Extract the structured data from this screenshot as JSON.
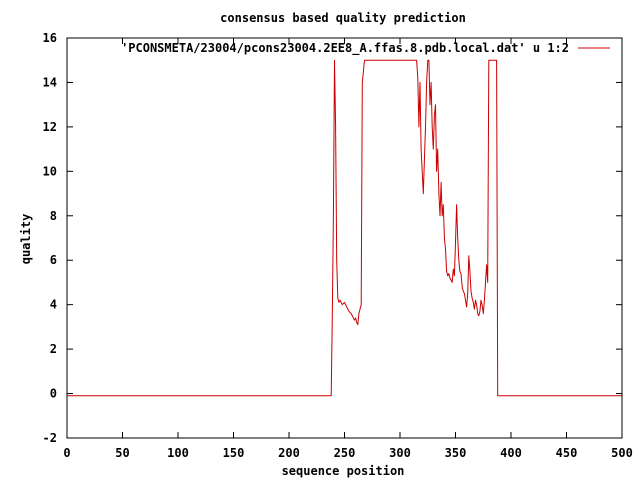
{
  "chart_data": {
    "type": "line",
    "title": "consensus based quality prediction",
    "xlabel": "sequence position",
    "ylabel": "quality",
    "xlim": [
      0,
      500
    ],
    "ylim": [
      -2,
      16
    ],
    "xticks": [
      0,
      50,
      100,
      150,
      200,
      250,
      300,
      350,
      400,
      450,
      500
    ],
    "yticks": [
      -2,
      0,
      2,
      4,
      6,
      8,
      10,
      12,
      14,
      16
    ],
    "grid": false,
    "legend_position": "top-right",
    "colors": {
      "series": "#cc0000",
      "axes": "#000000"
    },
    "series": [
      {
        "name": "'PCONSMETA/23004/pcons23004.2EE8_A.ffas.8.pdb.local.dat' u 1:2",
        "x": [
          0,
          238,
          239,
          240,
          241,
          242,
          243,
          244,
          245,
          246,
          248,
          250,
          252,
          254,
          256,
          258,
          259,
          260,
          261,
          262,
          263,
          264,
          265,
          266,
          268,
          270,
          280,
          290,
          300,
          310,
          315,
          316,
          317,
          318,
          319,
          320,
          321,
          322,
          323,
          324,
          325,
          326,
          327,
          328,
          329,
          330,
          331,
          332,
          333,
          334,
          335,
          336,
          337,
          338,
          339,
          340,
          341,
          342,
          343,
          344,
          345,
          346,
          347,
          348,
          349,
          350,
          351,
          352,
          353,
          354,
          355,
          356,
          357,
          358,
          359,
          360,
          361,
          362,
          363,
          364,
          365,
          366,
          367,
          368,
          369,
          370,
          371,
          372,
          373,
          374,
          375,
          376,
          377,
          378,
          379,
          380,
          381,
          382,
          383,
          384,
          385,
          386,
          387,
          388,
          389,
          500
        ],
        "y": [
          -0.1,
          -0.1,
          3.5,
          8,
          15,
          12,
          6,
          4.3,
          4.1,
          4.2,
          4,
          4.1,
          3.9,
          3.7,
          3.6,
          3.4,
          3.3,
          3.4,
          3.2,
          3.1,
          3.6,
          3.8,
          4,
          14,
          15,
          15,
          15,
          15,
          15,
          15,
          15,
          14.2,
          12,
          14,
          11,
          10,
          9,
          10.5,
          12,
          14,
          15,
          15,
          13,
          14,
          12,
          11,
          12.5,
          13,
          10,
          11,
          9,
          8,
          9.5,
          8,
          8.5,
          7,
          6.5,
          5.5,
          5.3,
          5.4,
          5.2,
          5.1,
          5,
          5.6,
          5.3,
          6.8,
          8.5,
          7,
          6,
          5.5,
          5.4,
          4.8,
          4.6,
          4.5,
          4.2,
          3.9,
          4.5,
          6.2,
          5.5,
          4.6,
          4.3,
          4.1,
          3.8,
          4.2,
          4,
          3.6,
          3.5,
          3.7,
          4.2,
          4,
          3.6,
          4.2,
          5,
          5.8,
          5,
          15,
          15,
          15,
          15,
          15,
          15,
          15,
          15,
          -0.1,
          -0.1,
          -0.1
        ]
      }
    ]
  }
}
